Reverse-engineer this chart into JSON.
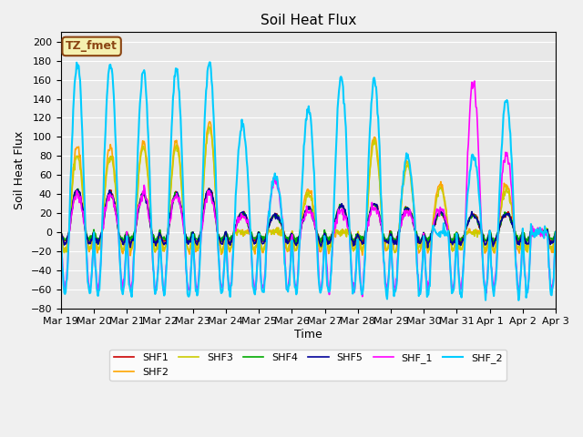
{
  "title": "Soil Heat Flux",
  "ylabel": "Soil Heat Flux",
  "xlabel": "Time",
  "ylim": [
    -80,
    210
  ],
  "yticks": [
    -80,
    -60,
    -40,
    -20,
    0,
    20,
    40,
    60,
    80,
    100,
    120,
    140,
    160,
    180,
    200
  ],
  "bg_color": "#e8e8e8",
  "plot_bg": "#e8e8e8",
  "annotation_text": "TZ_fmet",
  "annotation_color": "#8B4513",
  "annotation_bg": "#f5f0b0",
  "series": {
    "SHF1": {
      "color": "#cc0000",
      "lw": 1.2
    },
    "SHF2": {
      "color": "#ffa500",
      "lw": 1.2
    },
    "SHF3": {
      "color": "#cccc00",
      "lw": 1.2
    },
    "SHF4": {
      "color": "#00aa00",
      "lw": 1.2
    },
    "SHF5": {
      "color": "#000099",
      "lw": 1.2
    },
    "SHF_1": {
      "color": "#ff00ff",
      "lw": 1.2
    },
    "SHF_2": {
      "color": "#00ccff",
      "lw": 1.5
    }
  },
  "xtick_labels": [
    "Mar 19",
    "Mar 20",
    "Mar 21",
    "Mar 22",
    "Mar 23",
    "Mar 24",
    "Mar 25",
    "Mar 26",
    "Mar 27",
    "Mar 28",
    "Mar 29",
    "Mar 30",
    "Mar 31",
    "Apr 1",
    "Apr 2",
    "Apr 3"
  ],
  "legend_loc": "lower center",
  "legend_ncol": 6
}
